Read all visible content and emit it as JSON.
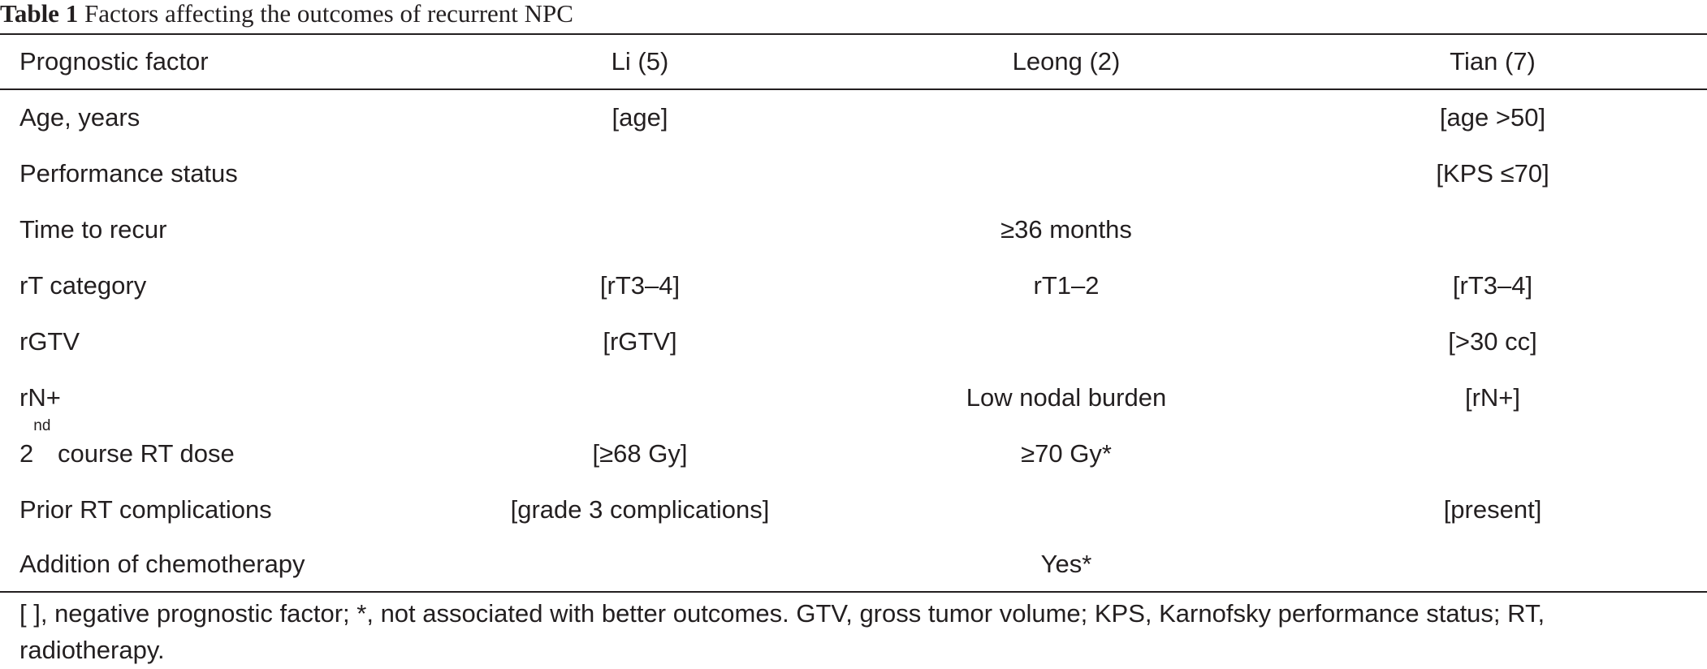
{
  "caption": {
    "label": "Table 1",
    "title": "Factors affecting the outcomes of recurrent NPC"
  },
  "table": {
    "headers": [
      "Prognostic factor",
      "Li (5)",
      "Leong (2)",
      "Tian (7)"
    ],
    "rows": [
      {
        "factor": "Age, years",
        "li": "[age]",
        "leong": "",
        "tian": "[age >50]"
      },
      {
        "factor": "Performance status",
        "li": "",
        "leong": "",
        "tian": "[KPS ≤70]"
      },
      {
        "factor": "Time to recur",
        "li": "",
        "leong": "≥36 months",
        "tian": ""
      },
      {
        "factor": "rT category",
        "li": "[rT3–4]",
        "leong": "rT1–2",
        "tian": "[rT3–4]"
      },
      {
        "factor": "rGTV",
        "li": "[rGTV]",
        "leong": "",
        "tian": "[>30 cc]"
      },
      {
        "factor": "rN+",
        "li": "",
        "leong": "Low nodal burden",
        "tian": "[rN+]"
      },
      {
        "factor_prefix": "2",
        "factor_sup": "nd",
        "factor": " course RT dose",
        "li": "[≥68 Gy]",
        "leong": "≥70 Gy*",
        "tian": ""
      },
      {
        "factor": "Prior RT complications",
        "li": "[grade 3 complications]",
        "leong": "",
        "tian": "[present]"
      },
      {
        "factor": "Addition of chemotherapy",
        "li": "",
        "leong": "Yes*",
        "tian": ""
      }
    ]
  },
  "footnote": "[ ], negative prognostic factor; *, not associated with better outcomes. GTV, gross tumor volume; KPS, Karnofsky performance status; RT, radiotherapy."
}
